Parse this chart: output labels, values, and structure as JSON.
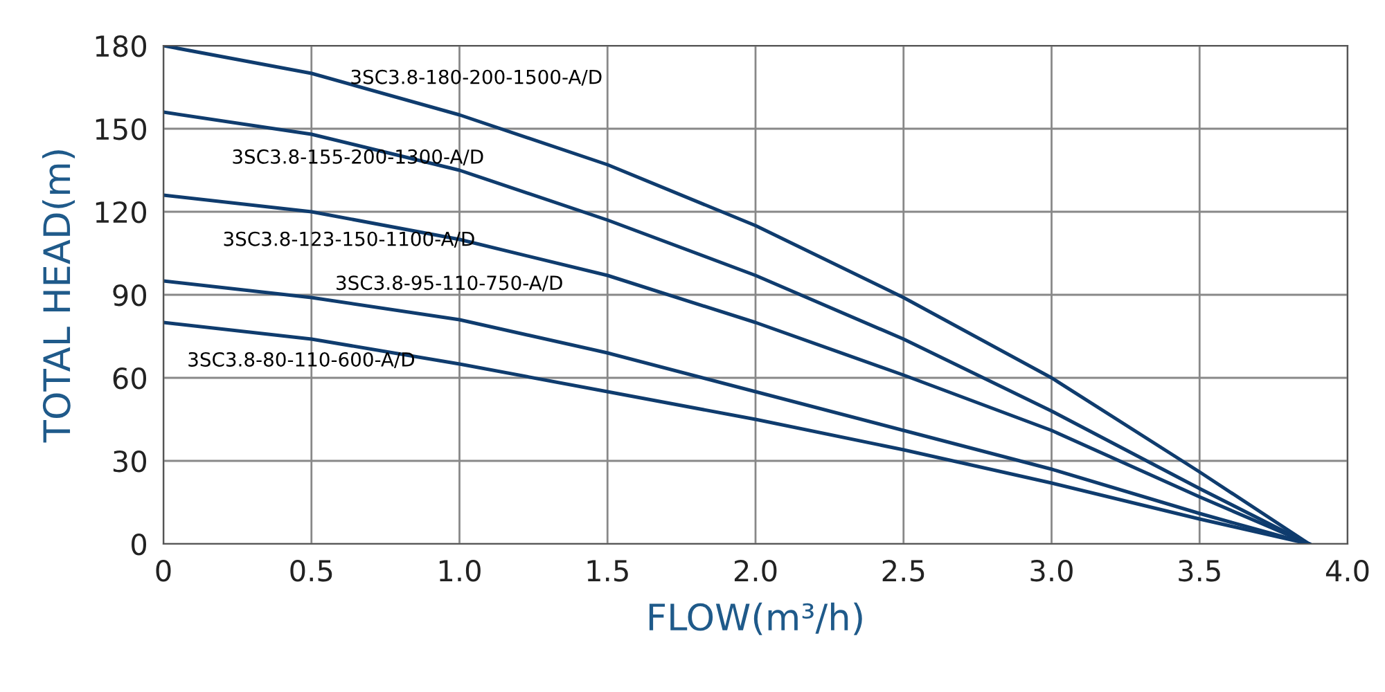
{
  "chart_data": {
    "type": "line",
    "xlabel": "FLOW(m³/h)",
    "ylabel": "TOTAL HEAD(m)",
    "xlim": [
      0,
      4
    ],
    "ylim": [
      0,
      180
    ],
    "xticks": [
      0,
      0.5,
      {
        "value": 1,
        "label": "1.0"
      },
      1.5,
      {
        "value": 2,
        "label": "2.0"
      },
      2.5,
      {
        "value": 3,
        "label": "3.0"
      },
      3.5,
      {
        "value": 4,
        "label": "4.0"
      }
    ],
    "yticks": [
      0,
      30,
      60,
      90,
      120,
      150,
      180
    ],
    "grid": true,
    "marker": "none",
    "line_style": "solid",
    "legend": false,
    "x": [
      0,
      0.5,
      1.0,
      1.5,
      2.0,
      2.5,
      3.0,
      3.5,
      3.87
    ],
    "series": [
      {
        "name": "3SC3.8-180-200-1500-A/D",
        "color": "#0f3c6e",
        "values": [
          180,
          170,
          155,
          137,
          115,
          89,
          60,
          26,
          0
        ]
      },
      {
        "name": "3SC3.8-155-200-1300-A/D",
        "color": "#0f3c6e",
        "values": [
          156,
          148,
          135,
          117,
          97,
          74,
          48,
          20,
          0
        ]
      },
      {
        "name": "3SC3.8-123-150-1100-A/D",
        "color": "#0f3c6e",
        "values": [
          126,
          120,
          110,
          97,
          80,
          61,
          41,
          17,
          0
        ]
      },
      {
        "name": "3SC3.8-95-110-750-A/D",
        "color": "#0f3c6e",
        "values": [
          95,
          89,
          81,
          69,
          55,
          41,
          27,
          11,
          0
        ]
      },
      {
        "name": "3SC3.8-80-110-600-A/D",
        "color": "#0f3c6e",
        "values": [
          80,
          74,
          65,
          55,
          45,
          34,
          22,
          9,
          0
        ]
      }
    ]
  }
}
